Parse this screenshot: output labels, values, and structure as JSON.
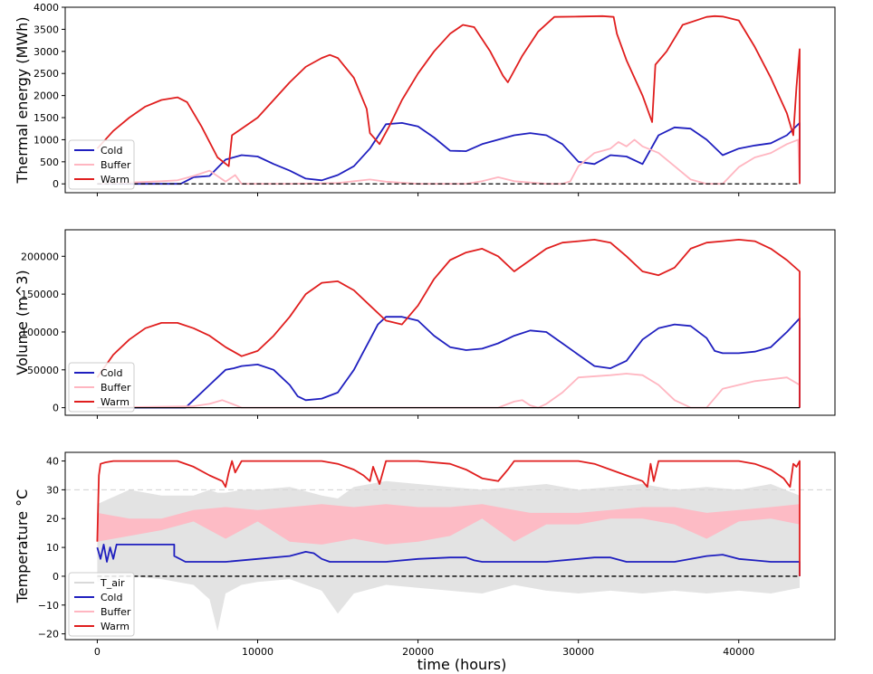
{
  "colors": {
    "Cold": "#1f1fbf",
    "Buffer": "#ffb6c1",
    "Warm": "#e01e1e",
    "T_air": "#d9d9d9",
    "zero_line": "#000000"
  },
  "xlabel": "time (hours)",
  "xticks": [
    0,
    10000,
    20000,
    30000,
    40000
  ],
  "xlim": [
    -2000,
    46000
  ],
  "chart_data": [
    {
      "type": "line",
      "ylabel": "Thermal energy (MWh)",
      "ylim": [
        -200,
        4000
      ],
      "yticks": [
        0,
        500,
        1000,
        1500,
        2000,
        2500,
        3000,
        3500,
        4000
      ],
      "legend": "lower-left",
      "zero_line": true,
      "series": [
        {
          "name": "Cold",
          "x": [
            0,
            5200,
            6000,
            7000,
            8000,
            9000,
            10000,
            11000,
            12000,
            13000,
            14000,
            15000,
            16000,
            17000,
            18000,
            19000,
            20000,
            21000,
            22000,
            23000,
            24000,
            25000,
            26000,
            27000,
            28000,
            29000,
            30000,
            31000,
            32000,
            33000,
            34000,
            35000,
            36000,
            37000,
            38000,
            39000,
            40000,
            41000,
            42000,
            43000,
            43800,
            43800
          ],
          "y": [
            0,
            0,
            150,
            180,
            550,
            650,
            620,
            450,
            300,
            120,
            80,
            200,
            400,
            800,
            1350,
            1380,
            1300,
            1050,
            750,
            740,
            900,
            1000,
            1100,
            1150,
            1100,
            900,
            500,
            450,
            650,
            620,
            450,
            1100,
            1280,
            1250,
            1000,
            650,
            800,
            870,
            920,
            1100,
            1380,
            0
          ]
        },
        {
          "name": "Buffer",
          "x": [
            0,
            2000,
            4000,
            5000,
            6000,
            7000,
            7600,
            8000,
            8600,
            9000,
            12000,
            15000,
            16000,
            17000,
            18000,
            20000,
            23000,
            24000,
            25000,
            26000,
            28000,
            29000,
            29500,
            30000,
            31000,
            32000,
            32500,
            33000,
            33500,
            34000,
            35000,
            36000,
            37000,
            38000,
            39000,
            40000,
            41000,
            42000,
            43000,
            43700,
            43800
          ],
          "y": [
            0,
            30,
            60,
            80,
            180,
            300,
            150,
            50,
            200,
            0,
            0,
            20,
            60,
            100,
            50,
            0,
            0,
            60,
            150,
            60,
            0,
            0,
            60,
            400,
            700,
            800,
            950,
            850,
            1000,
            850,
            700,
            400,
            100,
            0,
            0,
            380,
            600,
            700,
            900,
            1000,
            0
          ]
        },
        {
          "name": "Warm",
          "x": [
            0,
            1000,
            2000,
            3000,
            4000,
            5000,
            5600,
            6500,
            7500,
            8200,
            8400,
            9000,
            10000,
            11000,
            12000,
            13000,
            14000,
            14500,
            15000,
            16000,
            16800,
            17000,
            17600,
            18200,
            19000,
            20000,
            21000,
            22000,
            22800,
            23500,
            24500,
            25300,
            25600,
            26500,
            27500,
            28500,
            30000,
            31500,
            32200,
            32400,
            33000,
            34000,
            34600,
            34800,
            35500,
            36500,
            38000,
            38500,
            39000,
            40000,
            41000,
            42000,
            43000,
            43400,
            43600,
            43800,
            43800
          ],
          "y": [
            800,
            1200,
            1500,
            1750,
            1900,
            1960,
            1850,
            1300,
            600,
            400,
            1100,
            1250,
            1500,
            1900,
            2300,
            2650,
            2850,
            2920,
            2850,
            2400,
            1700,
            1150,
            900,
            1300,
            1900,
            2500,
            3000,
            3400,
            3600,
            3550,
            3000,
            2450,
            2300,
            2900,
            3450,
            3780,
            3790,
            3800,
            3780,
            3400,
            2800,
            2000,
            1400,
            2700,
            3000,
            3600,
            3780,
            3800,
            3790,
            3700,
            3100,
            2400,
            1600,
            1100,
            2200,
            3050,
            0
          ]
        }
      ]
    },
    {
      "type": "line",
      "ylabel": "Volume (m^3)",
      "ylim": [
        -10000,
        235000
      ],
      "yticks": [
        0,
        50000,
        100000,
        150000,
        200000
      ],
      "legend": "lower-left",
      "zero_line": true,
      "series": [
        {
          "name": "Cold",
          "x": [
            0,
            5500,
            6000,
            7000,
            7500,
            8000,
            8500,
            9000,
            10000,
            11000,
            12000,
            12500,
            13000,
            14000,
            15000,
            16000,
            16500,
            17000,
            17500,
            18000,
            19000,
            20000,
            21000,
            22000,
            23000,
            24000,
            25000,
            26000,
            27000,
            28000,
            29000,
            30000,
            31000,
            32000,
            33000,
            34000,
            35000,
            36000,
            37000,
            38000,
            38500,
            39000,
            40000,
            41000,
            42000,
            42500,
            43000,
            43800,
            43800
          ],
          "y": [
            0,
            0,
            10000,
            30000,
            40000,
            50000,
            52000,
            55000,
            57000,
            50000,
            30000,
            15000,
            10000,
            12000,
            20000,
            50000,
            70000,
            90000,
            110000,
            120000,
            120000,
            115000,
            95000,
            80000,
            76000,
            78000,
            85000,
            95000,
            102000,
            100000,
            85000,
            70000,
            55000,
            52000,
            62000,
            90000,
            105000,
            110000,
            108000,
            92000,
            75000,
            72000,
            72000,
            74000,
            80000,
            90000,
            100000,
            118000,
            0
          ]
        },
        {
          "name": "Buffer",
          "x": [
            0,
            6000,
            7000,
            7800,
            8400,
            9000,
            25000,
            26000,
            26500,
            27000,
            27500,
            28000,
            29000,
            30000,
            32000,
            33000,
            34000,
            35000,
            36000,
            37000,
            38000,
            39000,
            41000,
            43000,
            43800
          ],
          "y": [
            0,
            2000,
            5000,
            10000,
            5000,
            0,
            0,
            8000,
            10000,
            3000,
            0,
            5000,
            20000,
            40000,
            43000,
            45000,
            43000,
            30000,
            10000,
            0,
            0,
            25000,
            35000,
            40000,
            30000
          ]
        },
        {
          "name": "Warm",
          "x": [
            0,
            1000,
            2000,
            3000,
            4000,
            5000,
            6000,
            7000,
            8000,
            9000,
            10000,
            11000,
            12000,
            13000,
            14000,
            15000,
            16000,
            17000,
            18000,
            19000,
            20000,
            21000,
            22000,
            23000,
            24000,
            25000,
            26000,
            27000,
            28000,
            29000,
            30000,
            31000,
            32000,
            33000,
            34000,
            35000,
            36000,
            37000,
            38000,
            39000,
            40000,
            41000,
            42000,
            43000,
            43800,
            43800
          ],
          "y": [
            40000,
            70000,
            90000,
            105000,
            112000,
            112000,
            105000,
            95000,
            80000,
            68000,
            75000,
            95000,
            120000,
            150000,
            165000,
            167000,
            155000,
            135000,
            115000,
            110000,
            135000,
            170000,
            195000,
            205000,
            210000,
            200000,
            180000,
            195000,
            210000,
            218000,
            220000,
            222000,
            218000,
            200000,
            180000,
            175000,
            185000,
            210000,
            218000,
            220000,
            222000,
            220000,
            210000,
            195000,
            180000,
            0
          ]
        }
      ]
    },
    {
      "type": "line",
      "ylabel": "Temperature °C",
      "ylim": [
        -22,
        43
      ],
      "yticks": [
        -20,
        -10,
        0,
        10,
        20,
        30,
        40
      ],
      "legend": "lower-left",
      "zero_line": true,
      "dashed_ref_line": 30,
      "series": [
        {
          "name": "T_air",
          "band": true,
          "x": [
            0,
            2000,
            4000,
            6000,
            7000,
            7500,
            8000,
            9000,
            10000,
            12000,
            14000,
            15000,
            16000,
            18000,
            20000,
            22000,
            24000,
            26000,
            28000,
            30000,
            32000,
            34000,
            36000,
            38000,
            40000,
            42000,
            43800
          ],
          "low": [
            -2,
            0,
            -1,
            -3,
            -8,
            -19,
            -6,
            -3,
            -2,
            -1,
            -5,
            -13,
            -6,
            -3,
            -4,
            -5,
            -6,
            -3,
            -5,
            -6,
            -5,
            -6,
            -5,
            -6,
            -5,
            -6,
            -4
          ],
          "high": [
            25,
            30,
            28,
            28,
            30,
            29,
            29,
            30,
            30,
            31,
            28,
            27,
            31,
            33,
            32,
            31,
            30,
            31,
            32,
            30,
            31,
            32,
            30,
            31,
            30,
            32,
            28
          ]
        },
        {
          "name": "Cold",
          "x": [
            0,
            200,
            400,
            600,
            800,
            1000,
            1200,
            2000,
            4800,
            4800,
            5500,
            6000,
            8000,
            10000,
            12000,
            13000,
            13500,
            14000,
            14500,
            15000,
            18000,
            20000,
            22000,
            23000,
            23500,
            24000,
            26000,
            28000,
            30000,
            31000,
            32000,
            33000,
            34000,
            36000,
            38000,
            39000,
            40000,
            41000,
            42000,
            43000,
            43800,
            43800
          ],
          "y": [
            10,
            6,
            11,
            5,
            10,
            6,
            11,
            11,
            11,
            7,
            5,
            5,
            5,
            6,
            7,
            8.5,
            8,
            6,
            5,
            5,
            5,
            6,
            6.5,
            6.5,
            5.5,
            5,
            5,
            5,
            6,
            6.5,
            6.5,
            5,
            5,
            5,
            7,
            7.5,
            6,
            5.5,
            5,
            5,
            5,
            0
          ]
        },
        {
          "name": "Buffer",
          "band": true,
          "x": [
            0,
            2000,
            4000,
            6000,
            8000,
            10000,
            12000,
            14000,
            16000,
            18000,
            20000,
            22000,
            24000,
            26000,
            27000,
            28000,
            30000,
            32000,
            34000,
            36000,
            38000,
            40000,
            42000,
            43800
          ],
          "low": [
            12,
            14,
            16,
            19,
            13,
            19,
            12,
            11,
            13,
            11,
            12,
            14,
            20,
            12,
            15,
            18,
            18,
            20,
            20,
            18,
            13,
            19,
            20,
            18
          ],
          "high": [
            22,
            20,
            20,
            23,
            24,
            23,
            24,
            25,
            24,
            25,
            24,
            24,
            25,
            23,
            22,
            22,
            22,
            23,
            24,
            24,
            22,
            23,
            24,
            25
          ]
        },
        {
          "name": "Warm",
          "x": [
            0,
            100,
            200,
            500,
            1000,
            3000,
            5000,
            6000,
            7000,
            7800,
            8000,
            8200,
            8400,
            8600,
            9000,
            12000,
            14000,
            15000,
            16000,
            16600,
            17000,
            17200,
            17600,
            18000,
            19000,
            20000,
            22000,
            23000,
            24000,
            25000,
            25300,
            25600,
            26000,
            28000,
            30000,
            31000,
            32000,
            33000,
            34000,
            34300,
            34500,
            34700,
            35000,
            36000,
            38000,
            40000,
            41000,
            42000,
            42800,
            43200,
            43400,
            43600,
            43800,
            43800
          ],
          "y": [
            12,
            35,
            39,
            39.5,
            40,
            40,
            40,
            38,
            35,
            33,
            31,
            36,
            40,
            36,
            40,
            40,
            40,
            39,
            37,
            35,
            33,
            38,
            32,
            40,
            40,
            40,
            39,
            37,
            34,
            33,
            35,
            37,
            40,
            40,
            40,
            39,
            37,
            35,
            33,
            31,
            39,
            33,
            40,
            40,
            40,
            40,
            39,
            37,
            34,
            31,
            39,
            38,
            40,
            0
          ]
        }
      ]
    }
  ]
}
